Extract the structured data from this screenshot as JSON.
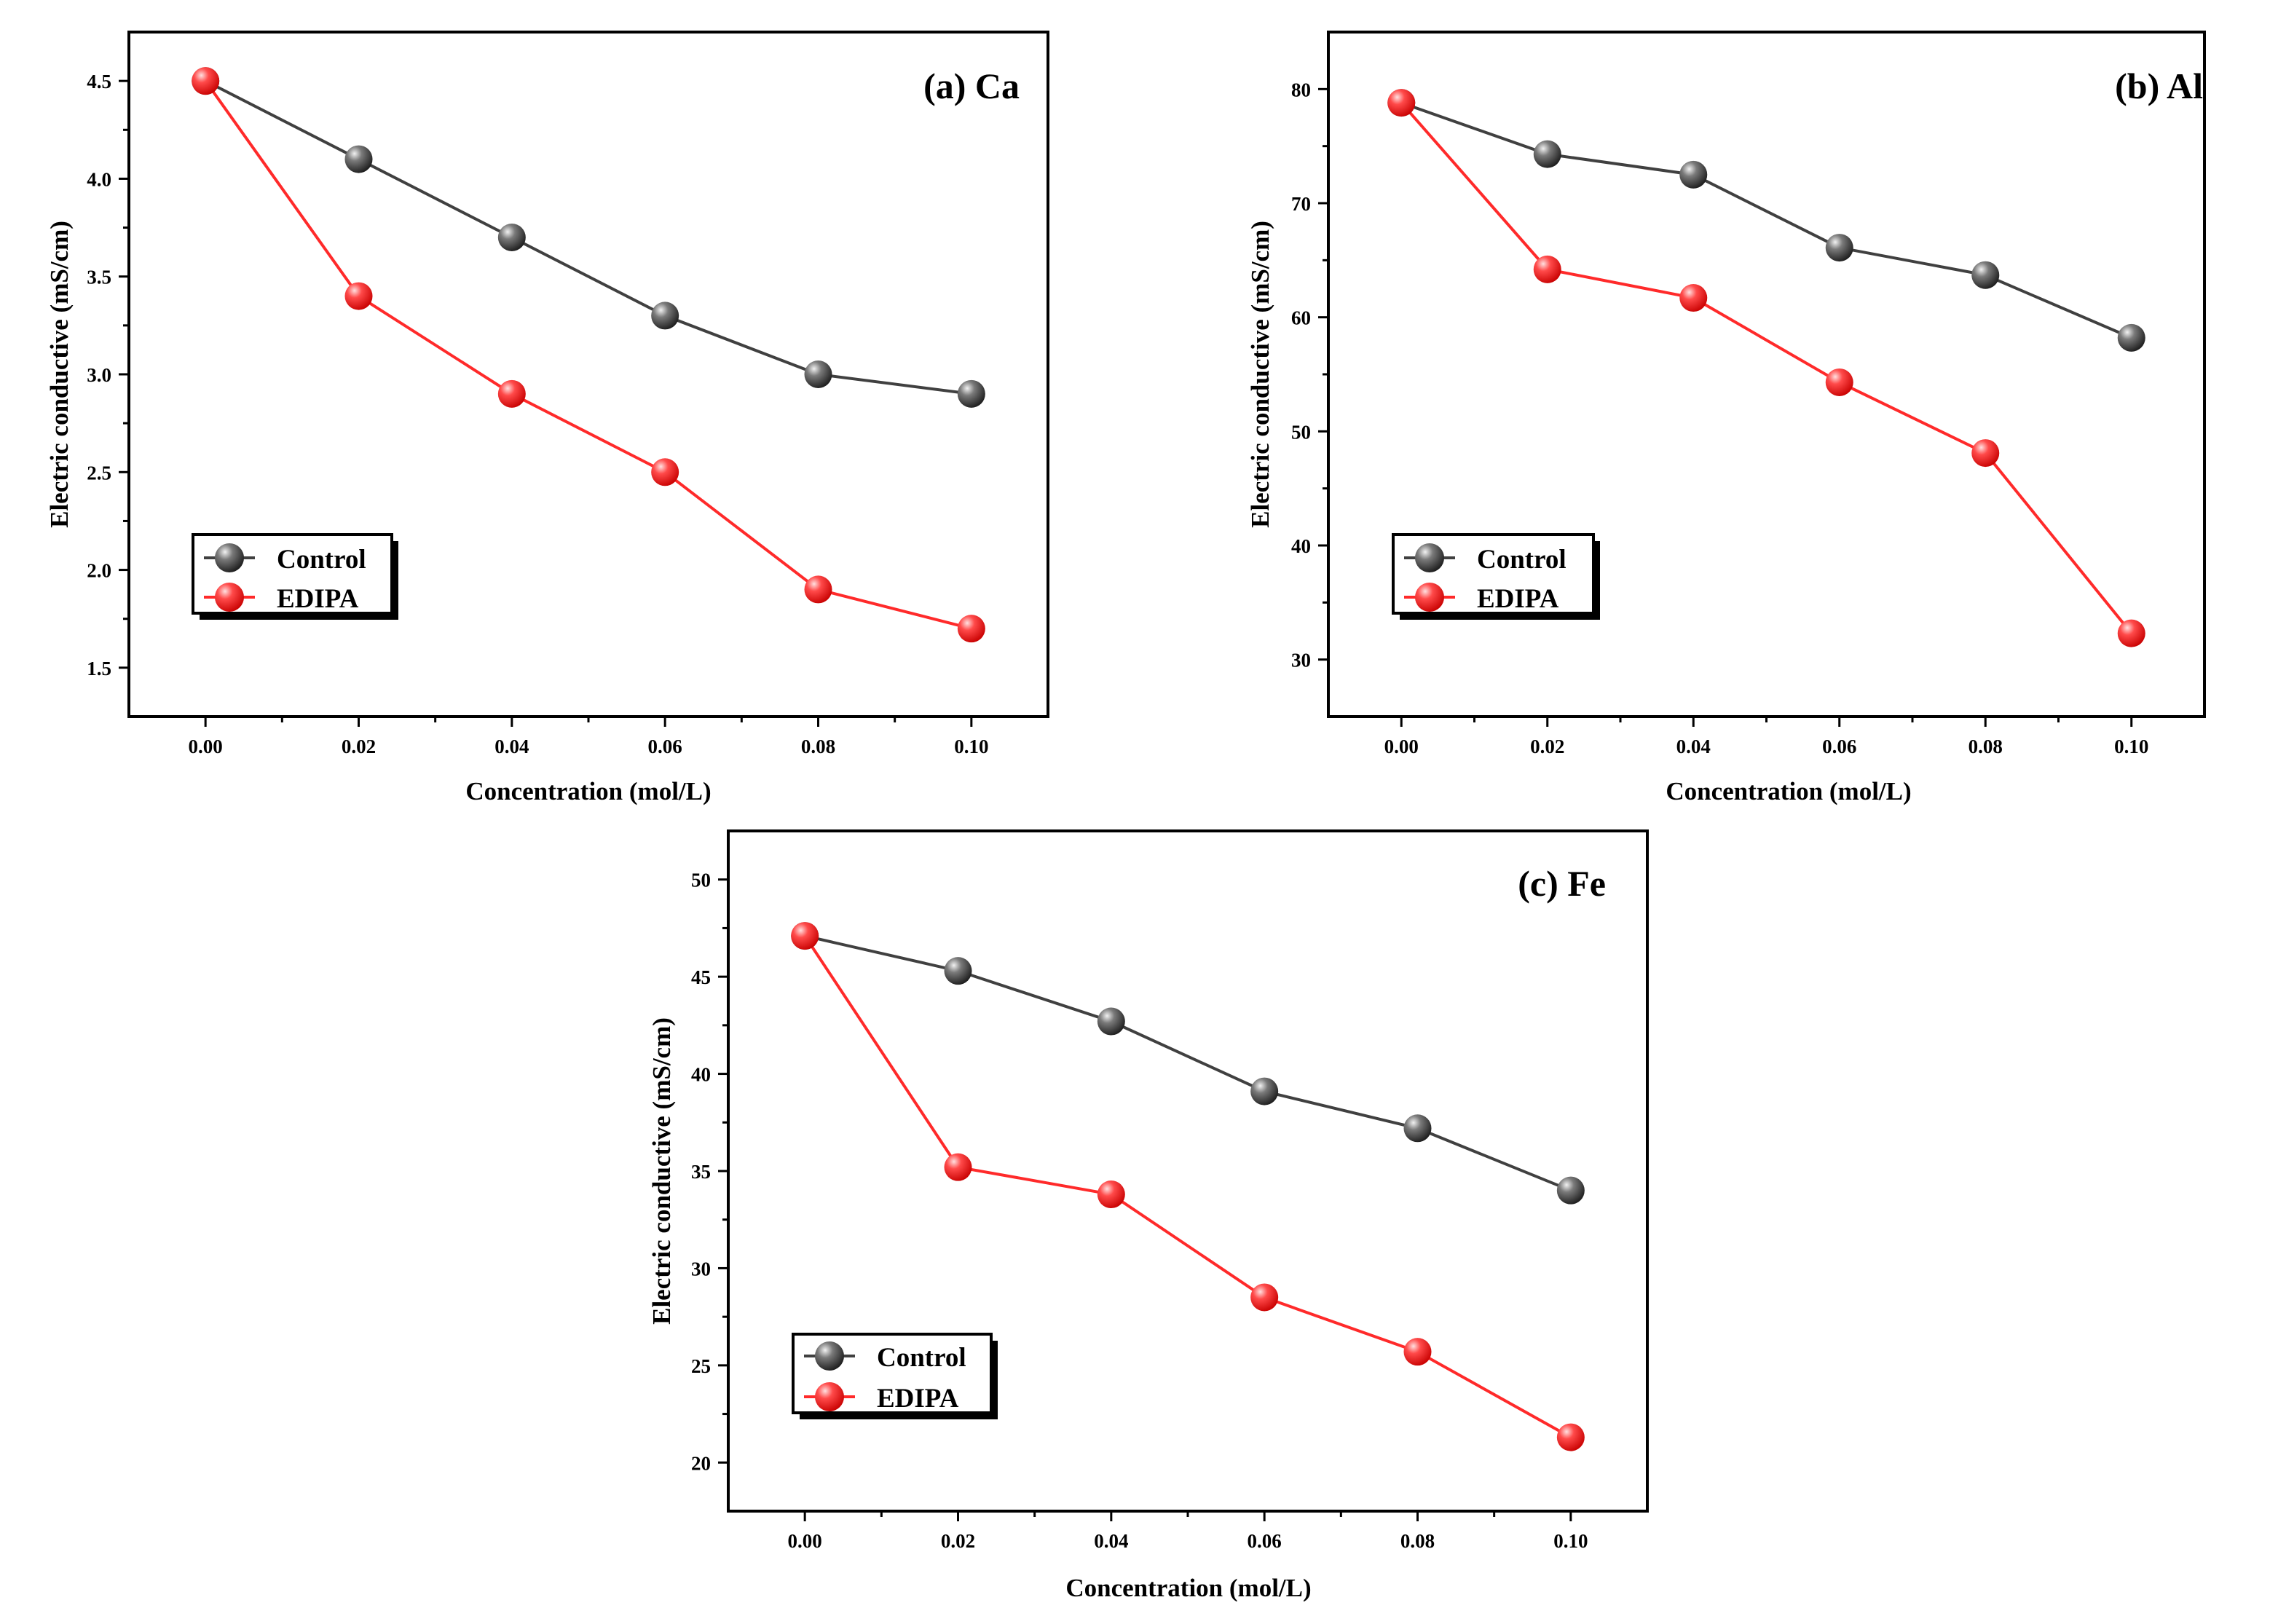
{
  "colors": {
    "control": "#555555",
    "edipa": "#ff3b3b",
    "control_line": "#404040",
    "edipa_line": "#ff2a2a",
    "axis": "#000000"
  },
  "chart_data": [
    {
      "type": "line",
      "title": "(a) Ca",
      "xlabel": "Concentration (mol/L)",
      "ylabel": "Electric conductive (mS/cm)",
      "x": [
        0.0,
        0.02,
        0.04,
        0.06,
        0.08,
        0.1
      ],
      "x_tick_labels": [
        "0.00",
        "0.02",
        "0.04",
        "0.06",
        "0.08",
        "0.10"
      ],
      "xlim": [
        -0.01,
        0.11
      ],
      "ylim": [
        1.25,
        4.75
      ],
      "y_ticks": [
        1.5,
        2.0,
        2.5,
        3.0,
        3.5,
        4.0,
        4.5
      ],
      "y_tick_labels": [
        "1.5",
        "2.0",
        "2.5",
        "3.0",
        "3.5",
        "4.0",
        "4.5"
      ],
      "legend_position": "lower-left",
      "series": [
        {
          "name": "Control",
          "values": [
            4.5,
            4.1,
            3.7,
            3.3,
            3.0,
            2.9
          ]
        },
        {
          "name": "EDIPA",
          "values": [
            4.5,
            3.4,
            2.9,
            2.5,
            1.9,
            1.7
          ]
        }
      ]
    },
    {
      "type": "line",
      "title": "(b) Al",
      "xlabel": "Concentration (mol/L)",
      "ylabel": "Electric conductive (mS/cm)",
      "x": [
        0.0,
        0.02,
        0.04,
        0.06,
        0.08,
        0.1
      ],
      "x_tick_labels": [
        "0.00",
        "0.02",
        "0.04",
        "0.06",
        "0.08",
        "0.10"
      ],
      "xlim": [
        -0.01,
        0.11
      ],
      "ylim": [
        25,
        85
      ],
      "y_ticks": [
        30,
        40,
        50,
        60,
        70,
        80
      ],
      "y_tick_labels": [
        "30",
        "40",
        "50",
        "60",
        "70",
        "80"
      ],
      "legend_position": "lower-left",
      "series": [
        {
          "name": "Control",
          "values": [
            78.8,
            74.3,
            72.5,
            66.1,
            63.7,
            58.2
          ]
        },
        {
          "name": "EDIPA",
          "values": [
            78.8,
            64.2,
            61.7,
            54.3,
            48.1,
            32.3
          ]
        }
      ]
    },
    {
      "type": "line",
      "title": "(c) Fe",
      "xlabel": "Concentration (mol/L)",
      "ylabel": "Electric conductive (mS/cm)",
      "x": [
        0.0,
        0.02,
        0.04,
        0.06,
        0.08,
        0.1
      ],
      "x_tick_labels": [
        "0.00",
        "0.02",
        "0.04",
        "0.06",
        "0.08",
        "0.10"
      ],
      "xlim": [
        -0.01,
        0.11
      ],
      "ylim": [
        17.5,
        52.5
      ],
      "y_ticks": [
        20,
        25,
        30,
        35,
        40,
        45,
        50
      ],
      "y_tick_labels": [
        "20",
        "25",
        "30",
        "35",
        "40",
        "45",
        "50"
      ],
      "legend_position": "lower-left",
      "series": [
        {
          "name": "Control",
          "values": [
            47.1,
            45.3,
            42.7,
            39.1,
            37.2,
            34.0
          ]
        },
        {
          "name": "EDIPA",
          "values": [
            47.1,
            35.2,
            33.8,
            28.5,
            25.7,
            21.3
          ]
        }
      ]
    }
  ]
}
